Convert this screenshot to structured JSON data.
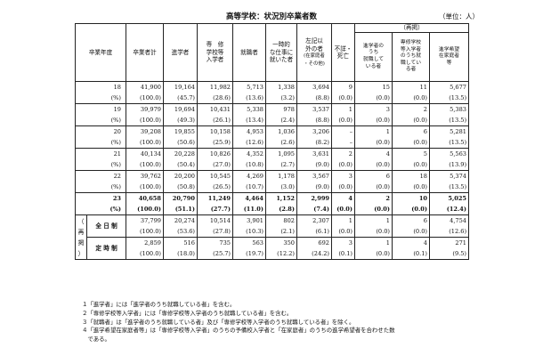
{
  "title": "高等学校：状況別卒業者数",
  "unit": "（単位：人）",
  "headers": {
    "year": "卒業年度",
    "total": "卒業者計",
    "advance": "進学者",
    "senshu": [
      "専　修",
      "学校等",
      "入学者"
    ],
    "employed": "就職者",
    "temporary": [
      "一時的",
      "な仕事に",
      "就いた者"
    ],
    "other": [
      "左記以",
      "外の者",
      "(在家庭者",
      "・その他)"
    ],
    "unknown": [
      "不詳・",
      "死亡"
    ],
    "regroup": "（再掲）",
    "sub1": [
      "進学者の",
      "うち",
      "就職して",
      "いる者"
    ],
    "sub2": [
      "専修学校",
      "等入学者",
      "のうち就",
      "職してい",
      "る者"
    ],
    "sub3": [
      "進学希望",
      "在家庭者",
      "等"
    ]
  },
  "rows": [
    {
      "year": "18",
      "vals": [
        "41,900",
        "19,164",
        "11,982",
        "5,713",
        "1,338",
        "3,694",
        "9",
        "15",
        "11",
        "5,677"
      ],
      "pct": [
        "(100.0)",
        "(45.7)",
        "(28.6)",
        "(13.6)",
        "(3.2)",
        "(8.8)",
        "(0.0)",
        "(0.0)",
        "(0.0)",
        "(13.5)"
      ]
    },
    {
      "year": "19",
      "vals": [
        "39,979",
        "19,694",
        "10,431",
        "5,338",
        "978",
        "3,537",
        "1",
        "3",
        "2",
        "5,383"
      ],
      "pct": [
        "(100.0)",
        "(49.3)",
        "(26.1)",
        "(13.4)",
        "(2.4)",
        "(8.8)",
        "(0.0)",
        "(0.0)",
        "(0.0)",
        "(13.5)"
      ]
    },
    {
      "year": "20",
      "vals": [
        "39,208",
        "19,855",
        "10,158",
        "4,953",
        "1,036",
        "3,206",
        "–",
        "1",
        "6",
        "5,281"
      ],
      "pct": [
        "(100.0)",
        "(50.6)",
        "(25.9)",
        "(12.6)",
        "(2.6)",
        "(8.2)",
        "–",
        "(0.0)",
        "(0.0)",
        "(13.5)"
      ]
    },
    {
      "year": "21",
      "vals": [
        "40,134",
        "20,228",
        "10,826",
        "4,352",
        "1,095",
        "3,631",
        "2",
        "4",
        "5",
        "5,563"
      ],
      "pct": [
        "(100.0)",
        "(50.4)",
        "(27.0)",
        "(10.8)",
        "(2.7)",
        "(9.0)",
        "(0.0)",
        "(0.0)",
        "(0.0)",
        "(13.9)"
      ]
    },
    {
      "year": "22",
      "vals": [
        "39,762",
        "20,200",
        "10,545",
        "4,269",
        "1,178",
        "3,567",
        "3",
        "6",
        "18",
        "5,374"
      ],
      "pct": [
        "(100.0)",
        "(50.8)",
        "(26.5)",
        "(10.7)",
        "(3.0)",
        "(9.0)",
        "(0.0)",
        "(0.0)",
        "(0.0)",
        "(13.5)"
      ]
    },
    {
      "year": "23",
      "vals": [
        "40,658",
        "20,790",
        "11,249",
        "4,464",
        "1,152",
        "2,999",
        "4",
        "2",
        "10",
        "5,025"
      ],
      "pct": [
        "(100.0)",
        "(51.1)",
        "(27.7)",
        "(11.0)",
        "(2.8)",
        "(7.4)",
        "(0.0)",
        "(0.0)",
        "(0.0)",
        "(12.4)"
      ]
    }
  ],
  "regroup_side": [
    "（",
    "再",
    "掲",
    "）"
  ],
  "subrows": [
    {
      "label": "全 日 制",
      "vals": [
        "37,799",
        "20,274",
        "10,514",
        "3,901",
        "802",
        "2,307",
        "1",
        "1",
        "6",
        "4,754"
      ],
      "pct": [
        "(100.0)",
        "(53.6)",
        "(27.8)",
        "(10.3)",
        "(2.1)",
        "(6.1)",
        "(0.0)",
        "(0.0)",
        "(0.0)",
        "(12.6)"
      ]
    },
    {
      "label": "定 時 制",
      "vals": [
        "2,859",
        "516",
        "735",
        "563",
        "350",
        "692",
        "3",
        "1",
        "4",
        "271"
      ],
      "pct": [
        "(100.0)",
        "(18.0)",
        "(25.7)",
        "(19.7)",
        "(12.2)",
        "(24.2)",
        "(0.1)",
        "(0.0)",
        "(0.1)",
        "(9.5)"
      ]
    }
  ],
  "pct_label": "(%)",
  "notes": [
    "１「進学者」には「進学者のうち就職している者」を含む。",
    "２「専修学校等入学者」には「専修学校等入学者のうち就職している者」を含む。",
    "３「就職者」は「進学者のうち就職している者」及び「専修学校等入学者のうち就職している者」を除く。",
    "４「進学希望在家庭者等」は「専修学校等入学者」のうちの予備校入学者と「在家庭者」のうちの進学希望者を合わせた数",
    "　である。"
  ]
}
